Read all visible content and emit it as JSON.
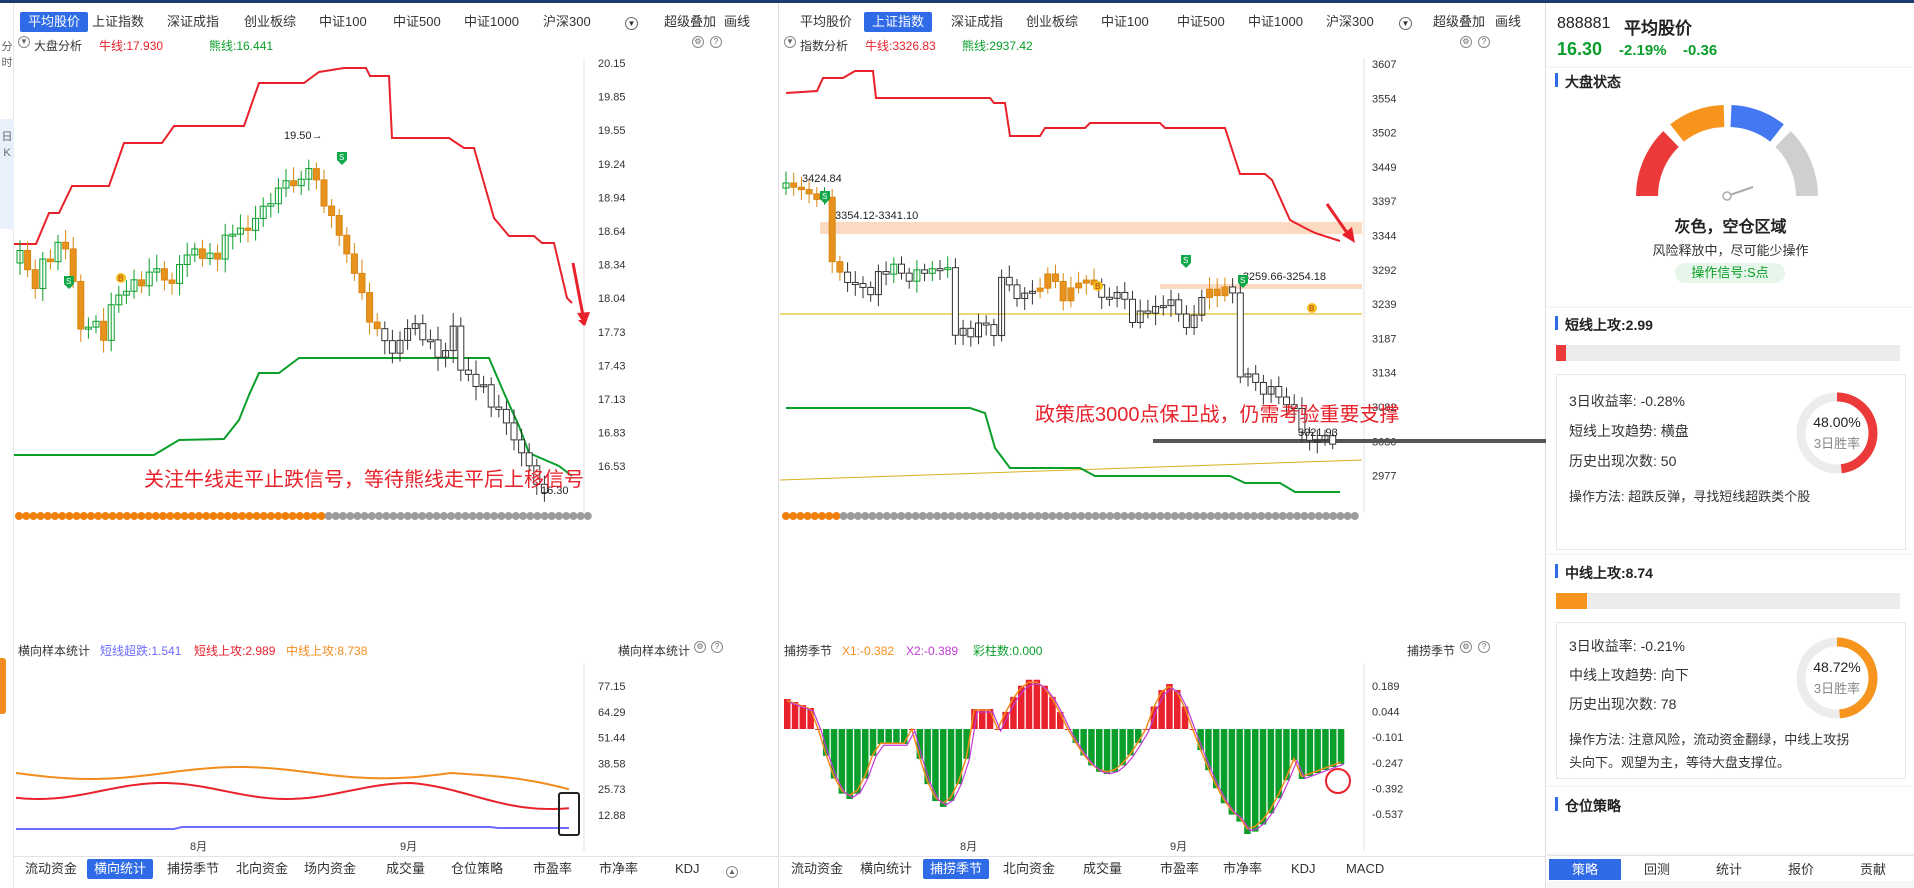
{
  "left_panel": {
    "tabs": [
      "平均股价",
      "上证指数",
      "深证成指",
      "创业板综",
      "中证100",
      "中证500",
      "中证1000",
      "沪深300"
    ],
    "active_tab": 0,
    "extra_tabs": [
      "超级叠加",
      "画线"
    ],
    "subhead": {
      "name": "大盘分析",
      "bull": "牛线:17.930",
      "bear": "熊线:16.441"
    },
    "y_ticks": [
      "20.15",
      "19.85",
      "19.55",
      "19.24",
      "18.94",
      "18.64",
      "18.34",
      "18.04",
      "17.73",
      "17.43",
      "17.13",
      "16.83",
      "16.53"
    ],
    "annotations": {
      "high": "19.50",
      "low": "16.30",
      "message": "关注牛线走平止跌信号，等待熊线走平后上移信号"
    },
    "lower_head": {
      "name": "横向样本统计",
      "v1": "短线超跌:1.541",
      "v2": "短线上攻:2.989",
      "v3": "中线上攻:8.738",
      "right": "横向样本统计"
    },
    "lower_ticks": [
      "77.15",
      "64.29",
      "51.44",
      "38.58",
      "25.73",
      "12.88"
    ],
    "x_labels": [
      "8月",
      "9月"
    ],
    "bottom_tabs": [
      "流动资金",
      "横向统计",
      "捕捞季节",
      "北向资金",
      "场内资金",
      "成交量",
      "仓位策略",
      "市盈率",
      "市净率",
      "KDJ"
    ],
    "bottom_active": 1
  },
  "right_panel": {
    "tabs": [
      "平均股价",
      "上证指数",
      "深证成指",
      "创业板综",
      "中证100",
      "中证500",
      "中证1000",
      "沪深300"
    ],
    "active_tab": 1,
    "extra_tabs": [
      "超级叠加",
      "画线"
    ],
    "subhead": {
      "name": "指数分析",
      "bull": "牛线:3326.83",
      "bear": "熊线:2937.42"
    },
    "y_ticks": [
      "3607",
      "3554",
      "3502",
      "3449",
      "3397",
      "3344",
      "3292",
      "3239",
      "3187",
      "3134",
      "3082",
      "3030",
      "2977"
    ],
    "annotations": {
      "high": "3424.84",
      "zone1": "3354.12-3341.10",
      "zone2": "3259.66-3254.18",
      "low": "3021.93",
      "message": "政策底3000点保卫战，仍需考验重要支撑"
    },
    "lower_head": {
      "name": "捕捞季节",
      "v1": "X1:-0.382",
      "v2": "X2:-0.389",
      "v3": "彩柱数:0.000",
      "right": "捕捞季节"
    },
    "lower_ticks": [
      "0.189",
      "0.044",
      "-0.101",
      "-0.247",
      "-0.392",
      "-0.537"
    ],
    "x_labels": [
      "8月",
      "9月"
    ],
    "bottom_tabs": [
      "流动资金",
      "横向统计",
      "捕捞季节",
      "北向资金",
      "成交量",
      "市盈率",
      "市净率",
      "KDJ",
      "MACD"
    ],
    "bottom_active": 2
  },
  "sidebar": {
    "code": "888881",
    "name": "平均股价",
    "price": "16.30",
    "change_pct": "-2.19%",
    "change": "-0.36",
    "market_state_title": "大盘状态",
    "gauge_status": "灰色，空仓区域",
    "gauge_desc": "风险释放中，尽可能少操作",
    "signal": "操作信号:S点",
    "short": {
      "title": "短线上攻:2.99",
      "bar_fraction": 0.03,
      "ret": "3日收益率: -0.28%",
      "trend": "短线上攻趋势: 横盘",
      "count": "历史出现次数: 50",
      "method": "操作方法: 超跌反弹，寻找短线超跌类个股",
      "ring_pct": "48.00%",
      "ring_label": "3日胜率",
      "ring_value": 0.48
    },
    "mid": {
      "title": "中线上攻:8.74",
      "bar_fraction": 0.09,
      "ret": "3日收益率: -0.21%",
      "trend": "中线上攻趋势: 向下",
      "count": "历史出现次数: 78",
      "method1": "操作方法: 注意风险，流动资金翻绿，中线上攻拐",
      "method2": "头向下。观望为主，等待大盘支撑位。",
      "ring_pct": "48.72%",
      "ring_label": "3日胜率",
      "ring_value": 0.4872
    },
    "position_title": "仓位策略",
    "bottom_tabs": [
      "策略",
      "回测",
      "统计",
      "报价",
      "贡献"
    ],
    "bottom_active": 0
  },
  "left_strip": [
    "分",
    "时",
    "日",
    "K"
  ],
  "colors": {
    "accent": "#2f6be6",
    "red": "#e8212b",
    "green": "#0a9e2a",
    "orange": "#f28c1e"
  }
}
